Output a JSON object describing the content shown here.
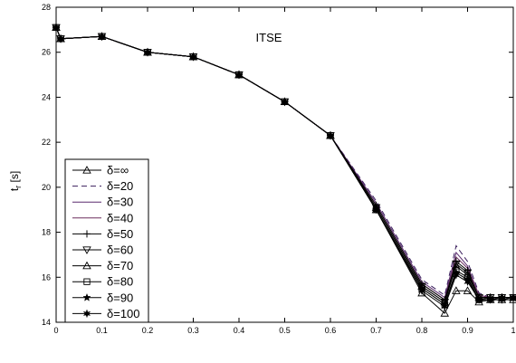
{
  "chart_data": {
    "type": "line",
    "title": "ITSE",
    "xlabel": "",
    "ylabel": "t_r [s]",
    "ylabel_main": "t",
    "ylabel_sub": "r",
    "ylabel_unit": " [s]",
    "xlim": [
      0,
      1
    ],
    "ylim": [
      14,
      28
    ],
    "xticks": [
      0,
      0.1,
      0.2,
      0.3,
      0.4,
      0.5,
      0.6,
      0.7,
      0.8,
      0.9,
      1
    ],
    "xtick_labels": [
      "0",
      "0.1",
      "0.2",
      "0.3",
      "0.4",
      "0.5",
      "0.6",
      "0.7",
      "0.8",
      "0.9",
      "1"
    ],
    "yticks": [
      14,
      16,
      18,
      20,
      22,
      24,
      26,
      28
    ],
    "ytick_labels": [
      "14",
      "16",
      "18",
      "20",
      "22",
      "24",
      "26",
      "28"
    ],
    "grid": false,
    "legend_position": "left",
    "x": [
      0,
      0.01,
      0.1,
      0.2,
      0.3,
      0.4,
      0.5,
      0.6,
      0.7,
      0.8,
      0.85,
      0.875,
      0.9,
      0.925,
      0.95,
      0.975,
      1
    ],
    "series": [
      {
        "name": "δ=∞",
        "color": "#000000",
        "dash": "",
        "marker": "triangle-up",
        "values": [
          27.1,
          26.6,
          26.7,
          26.0,
          25.8,
          25.0,
          23.8,
          22.3,
          19.0,
          15.3,
          14.4,
          15.4,
          15.4,
          14.9,
          15.0,
          15.0,
          15.0
        ]
      },
      {
        "name": "δ=20",
        "color": "#3a1f5c",
        "dash": "6,4",
        "marker": "none",
        "values": [
          27.1,
          26.6,
          26.7,
          26.0,
          25.8,
          25.0,
          23.8,
          22.3,
          19.4,
          15.9,
          15.2,
          17.4,
          16.7,
          15.3,
          15.1,
          15.1,
          15.1
        ]
      },
      {
        "name": "δ=30",
        "color": "#5a2a6e",
        "dash": "",
        "marker": "none",
        "values": [
          27.1,
          26.6,
          26.7,
          26.0,
          25.8,
          25.0,
          23.8,
          22.3,
          19.3,
          15.8,
          15.1,
          17.1,
          16.5,
          15.2,
          15.1,
          15.1,
          15.1
        ]
      },
      {
        "name": "δ=40",
        "color": "#6b2f5f",
        "dash": "",
        "marker": "none",
        "values": [
          27.1,
          26.6,
          26.7,
          26.0,
          25.8,
          25.0,
          23.8,
          22.3,
          19.2,
          15.7,
          15.0,
          16.9,
          16.4,
          15.2,
          15.1,
          15.1,
          15.1
        ]
      },
      {
        "name": "δ=50",
        "color": "#000000",
        "dash": "",
        "marker": "plus",
        "values": [
          27.1,
          26.6,
          26.7,
          26.0,
          25.8,
          25.0,
          23.8,
          22.3,
          19.2,
          15.7,
          15.0,
          16.7,
          16.3,
          15.1,
          15.1,
          15.1,
          15.1
        ]
      },
      {
        "name": "δ=60",
        "color": "#000000",
        "dash": "",
        "marker": "triangle-down",
        "values": [
          27.1,
          26.6,
          26.7,
          26.0,
          25.8,
          25.0,
          23.8,
          22.3,
          19.1,
          15.6,
          14.9,
          16.6,
          16.2,
          15.1,
          15.1,
          15.1,
          15.1
        ]
      },
      {
        "name": "δ=70",
        "color": "#000000",
        "dash": "",
        "marker": "triangle-up",
        "values": [
          27.1,
          26.6,
          26.7,
          26.0,
          25.8,
          25.0,
          23.8,
          22.3,
          19.1,
          15.6,
          14.9,
          16.5,
          16.1,
          15.1,
          15.1,
          15.1,
          15.1
        ]
      },
      {
        "name": "δ=80",
        "color": "#000000",
        "dash": "",
        "marker": "square",
        "values": [
          27.1,
          26.6,
          26.7,
          26.0,
          25.8,
          25.0,
          23.8,
          22.3,
          19.0,
          15.5,
          14.8,
          16.3,
          16.0,
          15.0,
          15.1,
          15.1,
          15.1
        ]
      },
      {
        "name": "δ=90",
        "color": "#000000",
        "dash": "",
        "marker": "star",
        "values": [
          27.1,
          26.6,
          26.7,
          26.0,
          25.8,
          25.0,
          23.8,
          22.3,
          19.0,
          15.5,
          14.8,
          16.2,
          15.9,
          15.0,
          15.0,
          15.1,
          15.1
        ]
      },
      {
        "name": "δ=100",
        "color": "#000000",
        "dash": "",
        "marker": "star6",
        "values": [
          27.1,
          26.6,
          26.7,
          26.0,
          25.8,
          25.0,
          23.8,
          22.3,
          19.0,
          15.4,
          14.7,
          16.1,
          15.8,
          15.0,
          15.0,
          15.0,
          15.1
        ]
      }
    ]
  }
}
